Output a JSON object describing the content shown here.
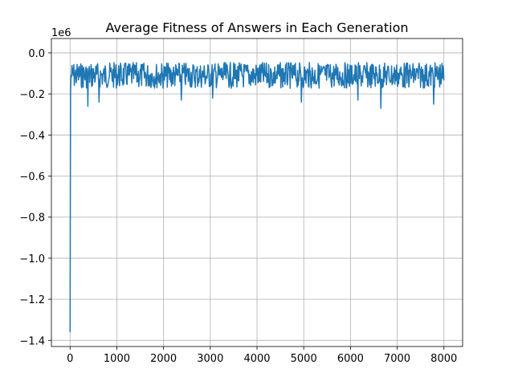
{
  "chart_data": {
    "type": "line",
    "title": "Average Fitness of Answers in Each Generation",
    "xlabel": "",
    "ylabel": "",
    "y_scale_label": "1e6",
    "xlim": [
      -400,
      8400
    ],
    "ylim": [
      -1.43,
      0.07
    ],
    "grid": true,
    "x_ticks": [
      0,
      1000,
      2000,
      3000,
      4000,
      5000,
      6000,
      7000,
      8000
    ],
    "x_tick_labels": [
      "0",
      "1000",
      "2000",
      "3000",
      "4000",
      "5000",
      "6000",
      "7000",
      "8000"
    ],
    "y_ticks": [
      0.0,
      -0.2,
      -0.4,
      -0.6,
      -0.8,
      -1.0,
      -1.2,
      -1.4
    ],
    "y_tick_labels": [
      "0.0",
      "−0.2",
      "−0.4",
      "−0.6",
      "−0.8",
      "−1.0",
      "−1.2",
      "−1.4"
    ],
    "series": [
      {
        "color": "#1f77b4",
        "x": [
          0,
          10,
          25,
          50,
          100,
          150,
          200,
          300,
          400,
          500,
          600,
          700,
          800,
          900,
          1000,
          1200,
          1400,
          1600,
          1800,
          2000,
          2200,
          2400,
          2600,
          2800,
          3000,
          3200,
          3400,
          3600,
          3800,
          4000,
          4200,
          4400,
          4600,
          4800,
          5000,
          5200,
          5400,
          5600,
          5800,
          6000,
          6200,
          6400,
          6600,
          6800,
          7000,
          7200,
          7400,
          7600,
          7800,
          8000
        ],
        "y": [
          -1.36,
          -0.2,
          -0.12,
          -0.1,
          -0.12,
          -0.09,
          -0.13,
          -0.1,
          -0.11,
          -0.09,
          -0.12,
          -0.1,
          -0.11,
          -0.09,
          -0.12,
          -0.1,
          -0.11,
          -0.09,
          -0.12,
          -0.1,
          -0.11,
          -0.09,
          -0.12,
          -0.1,
          -0.11,
          -0.09,
          -0.12,
          -0.1,
          -0.11,
          -0.09,
          -0.12,
          -0.1,
          -0.11,
          -0.09,
          -0.12,
          -0.1,
          -0.11,
          -0.09,
          -0.12,
          -0.1,
          -0.11,
          -0.09,
          -0.12,
          -0.1,
          -0.11,
          -0.09,
          -0.12,
          -0.1,
          -0.11,
          -0.1
        ],
        "band_upper": -0.02,
        "band_lower": -0.2,
        "dips": [
          {
            "x": 380,
            "y": -0.26
          },
          {
            "x": 620,
            "y": -0.24
          },
          {
            "x": 2380,
            "y": -0.23
          },
          {
            "x": 3050,
            "y": -0.22
          },
          {
            "x": 4950,
            "y": -0.24
          },
          {
            "x": 6160,
            "y": -0.23
          },
          {
            "x": 6650,
            "y": -0.27
          },
          {
            "x": 7780,
            "y": -0.25
          }
        ]
      }
    ]
  }
}
